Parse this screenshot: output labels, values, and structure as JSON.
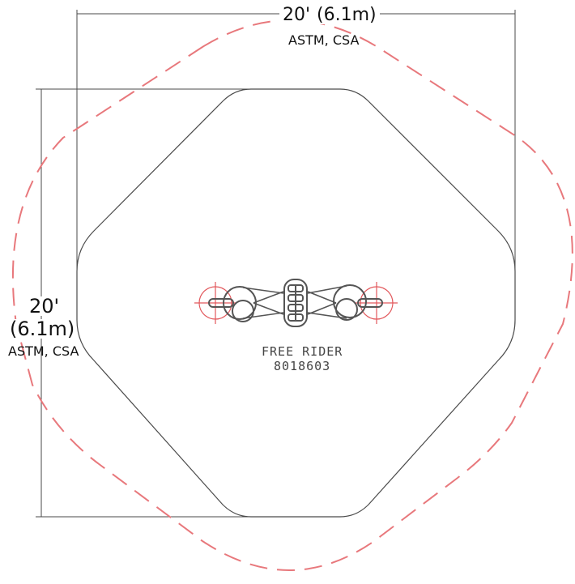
{
  "dimensions": {
    "top": {
      "feet": "20'",
      "meters": "(6.1m)",
      "standards": "ASTM, CSA"
    },
    "left": {
      "feet": "20'",
      "meters": "(6.1m)",
      "standards": "ASTM, CSA"
    }
  },
  "product": {
    "name": "FREE RIDER",
    "code": "8018603"
  },
  "colors": {
    "outline": "#4a4a4a",
    "use_zone": "#e8787c",
    "center_marks": "#e2585c"
  }
}
